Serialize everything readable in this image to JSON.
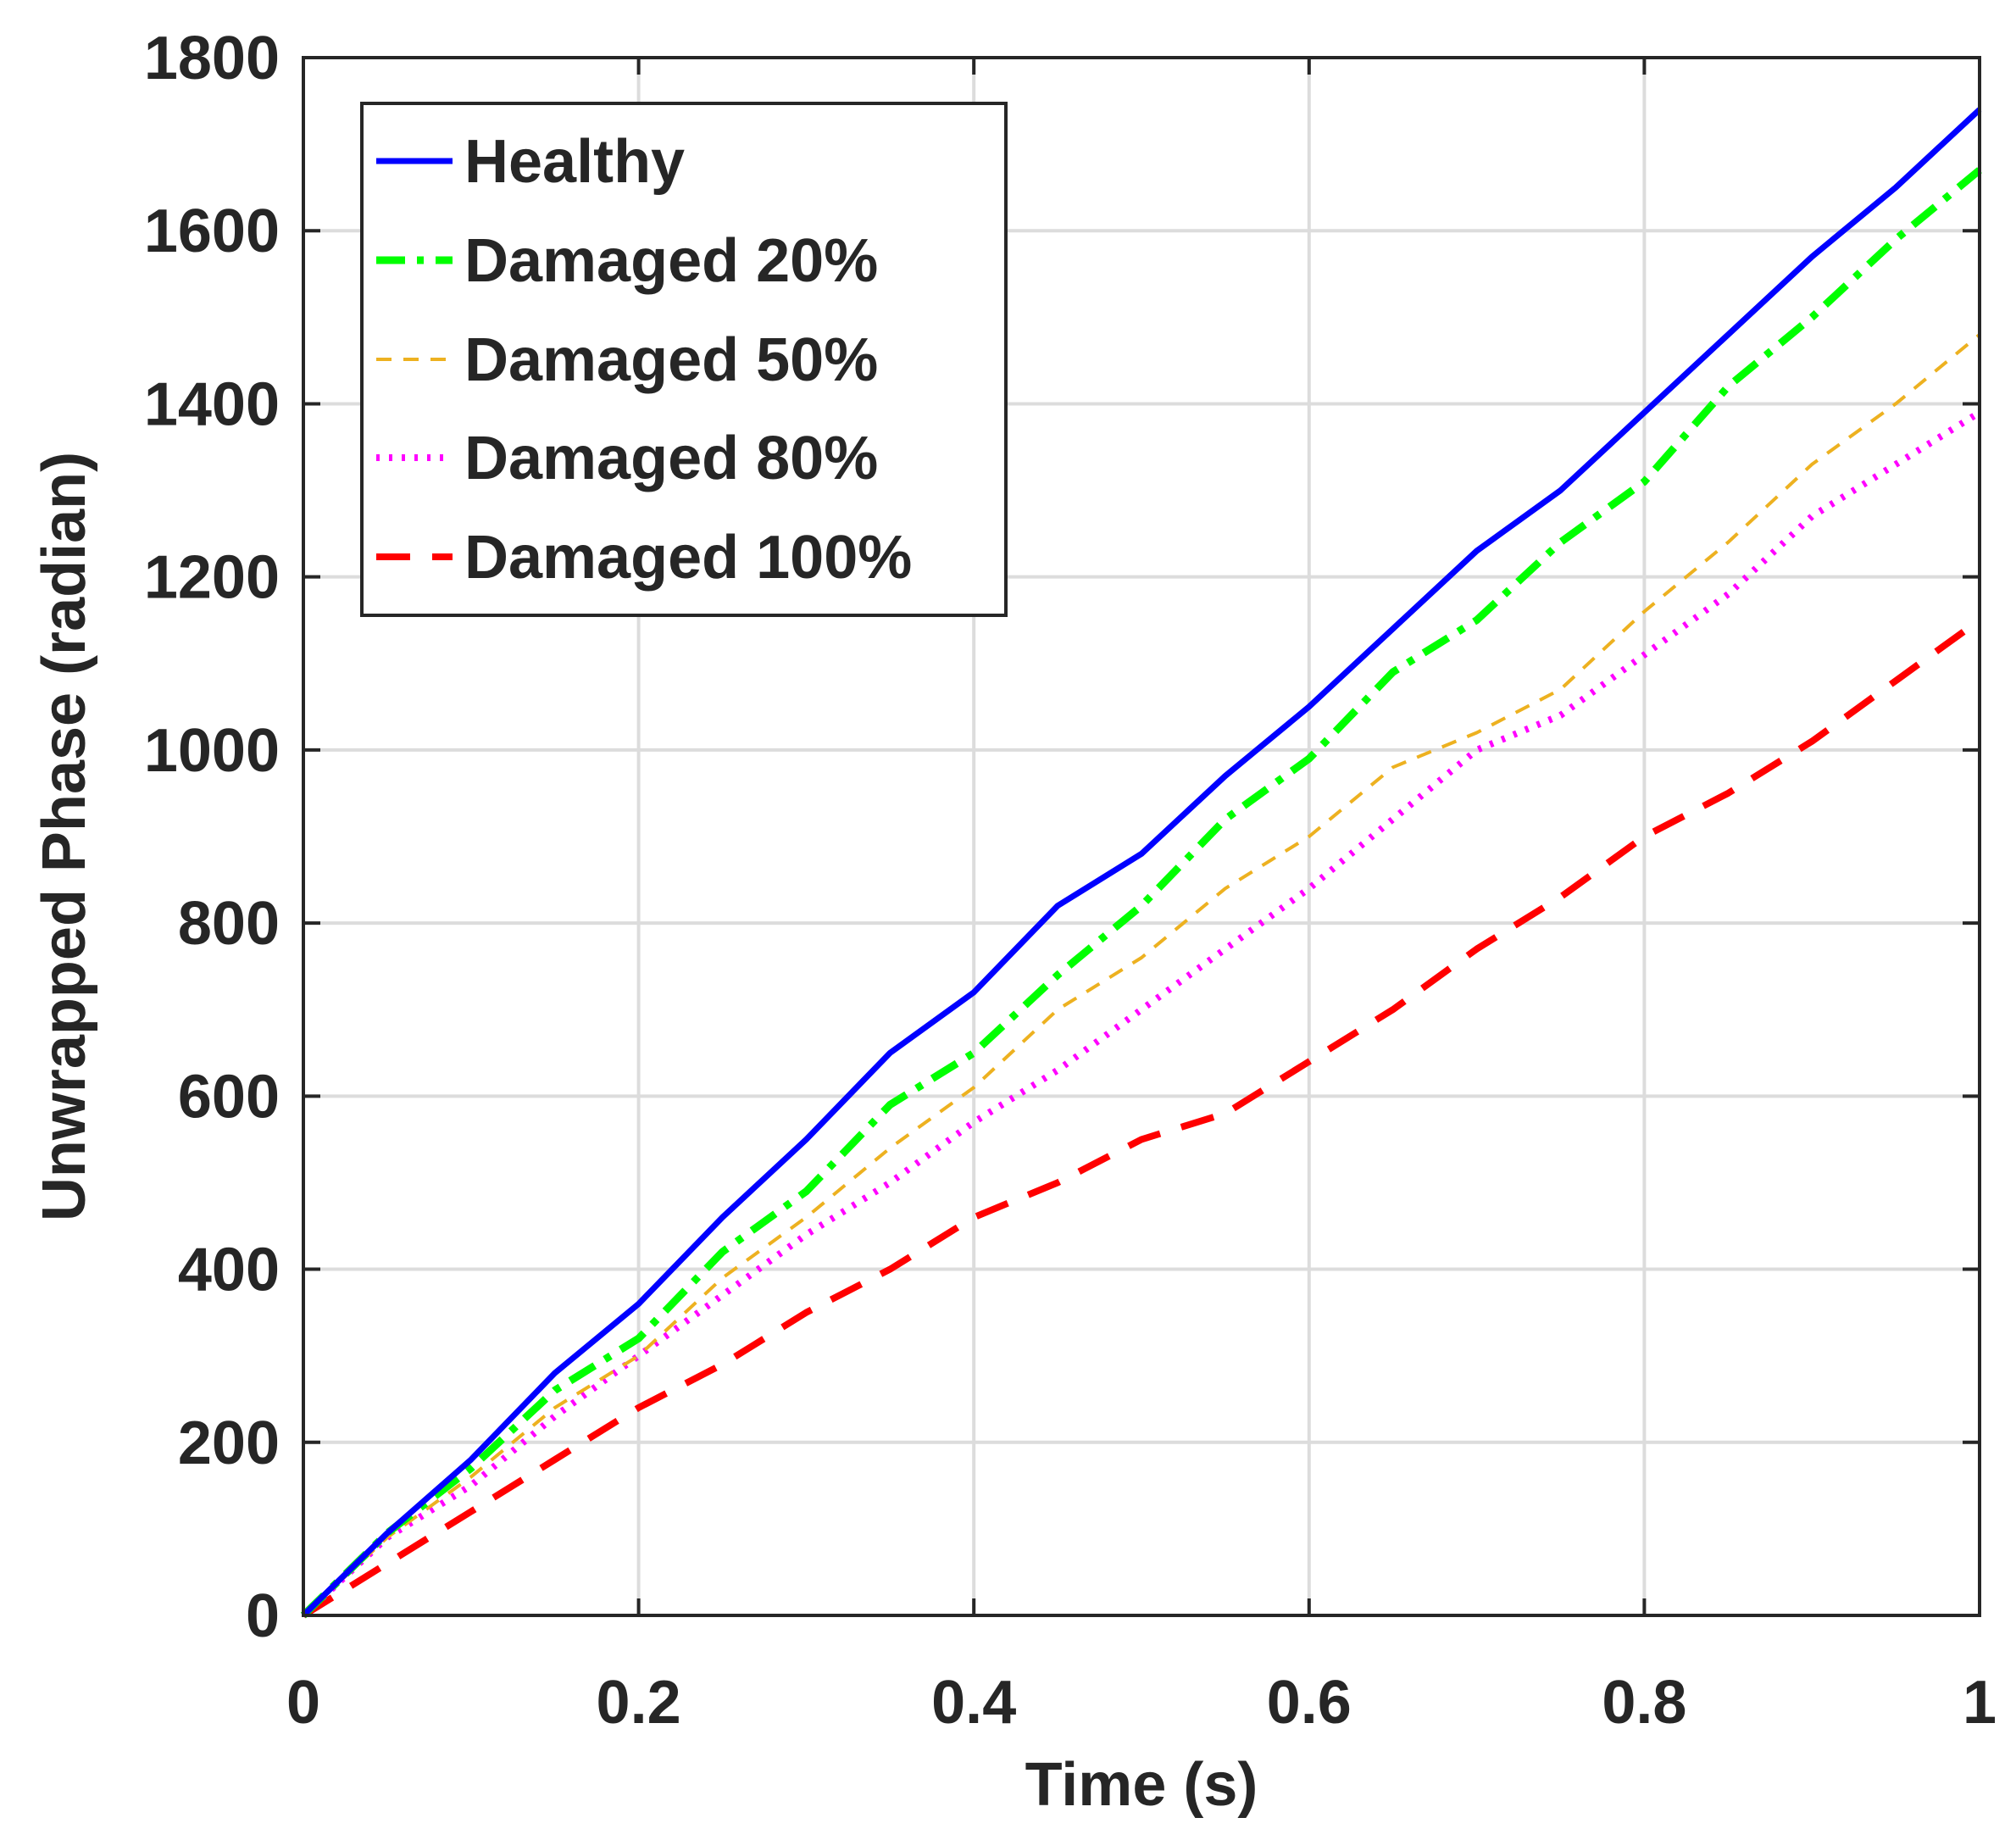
{
  "chart_data": {
    "type": "line",
    "title": "",
    "xlabel": "Time (s)",
    "ylabel": "Unwrapped Phase (radian)",
    "xlim": [
      0,
      1
    ],
    "ylim": [
      0,
      1800
    ],
    "xticks": [
      0,
      0.2,
      0.4,
      0.6,
      0.8,
      1
    ],
    "xtick_labels": [
      "0",
      "0.2",
      "0.4",
      "0.6",
      "0.8",
      "1"
    ],
    "yticks": [
      0,
      200,
      400,
      600,
      800,
      1000,
      1200,
      1400,
      1600,
      1800
    ],
    "ytick_labels": [
      "0",
      "200",
      "400",
      "600",
      "800",
      "1000",
      "1200",
      "1400",
      "1600",
      "1800"
    ],
    "grid": true,
    "legend_position": "top-left",
    "x": [
      0,
      0.05,
      0.1,
      0.15,
      0.2,
      0.25,
      0.3,
      0.35,
      0.4,
      0.45,
      0.5,
      0.55,
      0.6,
      0.65,
      0.7,
      0.75,
      0.8,
      0.85,
      0.9,
      0.95,
      1.0
    ],
    "series": [
      {
        "name": "Healthy",
        "color": "#0000ff",
        "style": "solid",
        "values": [
          0,
          95,
          180,
          280,
          360,
          460,
          550,
          650,
          720,
          820,
          880,
          970,
          1050,
          1140,
          1230,
          1300,
          1390,
          1480,
          1570,
          1650,
          1740
        ]
      },
      {
        "name": "Damaged 20%",
        "color": "#00ff00",
        "style": "dashdot",
        "values": [
          0,
          95,
          170,
          260,
          320,
          420,
          490,
          590,
          650,
          740,
          820,
          920,
          990,
          1090,
          1150,
          1240,
          1310,
          1420,
          1500,
          1590,
          1670
        ]
      },
      {
        "name": "Damaged 50%",
        "color": "#edb120",
        "style": "dashed-thin",
        "values": [
          0,
          90,
          160,
          240,
          300,
          390,
          460,
          540,
          610,
          700,
          760,
          840,
          900,
          980,
          1020,
          1070,
          1160,
          1240,
          1330,
          1400,
          1480
        ]
      },
      {
        "name": "Damaged 80%",
        "color": "#ff00ff",
        "style": "dotted",
        "values": [
          0,
          90,
          150,
          230,
          300,
          370,
          440,
          500,
          570,
          630,
          700,
          770,
          840,
          920,
          1000,
          1040,
          1110,
          1180,
          1270,
          1330,
          1390
        ]
      },
      {
        "name": "Damaged 100%",
        "color": "#ff0000",
        "style": "dashed-thick",
        "values": [
          0,
          60,
          120,
          180,
          240,
          290,
          350,
          400,
          460,
          500,
          550,
          580,
          640,
          700,
          770,
          830,
          900,
          950,
          1010,
          1080,
          1150
        ]
      }
    ]
  }
}
